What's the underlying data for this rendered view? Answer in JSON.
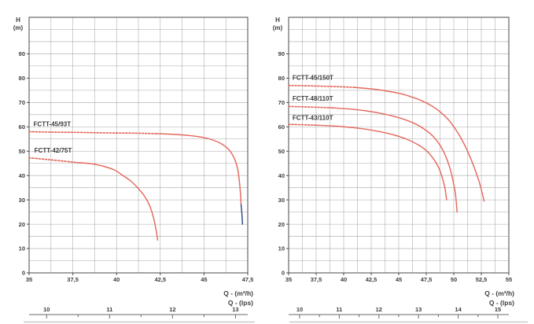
{
  "page": {
    "background": "#ffffff"
  },
  "colors": {
    "curve": "#e4695e",
    "curve_end_blue": "#2b4e86",
    "grid": "#a8a8a8",
    "frame": "#4a4a4a",
    "text": "#3d3d3d",
    "edge_bar": "#c9c9c9"
  },
  "chart_data": [
    {
      "type": "line",
      "name": "left-chart",
      "y_axis_title": "H",
      "y_axis_unit": "(m)",
      "x_axis_title": "Q - (m³/h)",
      "x_axis_secondary_title": "Q - (lps)",
      "xlim": [
        35,
        47.5
      ],
      "ylim": [
        0,
        105
      ],
      "x_minor_step": 1.25,
      "y_minor_step": 5,
      "x_ticks": [
        {
          "v": 35,
          "label": "35"
        },
        {
          "v": 37.5,
          "label": "37,5"
        },
        {
          "v": 40,
          "label": "40"
        },
        {
          "v": 42.5,
          "label": "42,5"
        },
        {
          "v": 45,
          "label": "45"
        },
        {
          "v": 47.5,
          "label": "47,5"
        }
      ],
      "y_ticks": [
        {
          "v": 0,
          "label": "0"
        },
        {
          "v": 10,
          "label": "10"
        },
        {
          "v": 20,
          "label": "20"
        },
        {
          "v": 30,
          "label": "30"
        },
        {
          "v": 40,
          "label": "40"
        },
        {
          "v": 50,
          "label": "50"
        },
        {
          "v": 60,
          "label": "60"
        },
        {
          "v": 70,
          "label": "70"
        },
        {
          "v": 80,
          "label": "80"
        },
        {
          "v": 90,
          "label": "90"
        }
      ],
      "lps_labels": [
        10,
        11,
        12,
        13
      ],
      "lps_factor": 3.6,
      "series": [
        {
          "name": "FCTT-45/93T",
          "color": "#e4695e",
          "label_pos": [
            35.25,
            60.3
          ],
          "segments": [
            {
              "style": "dashed",
              "points": [
                [
                  35,
                  58
                ],
                [
                  36.5,
                  57.8
                ],
                [
                  38,
                  57.7
                ],
                [
                  39.5,
                  57.5
                ],
                [
                  41,
                  57.4
                ],
                [
                  42.3,
                  57.2
                ]
              ]
            },
            {
              "style": "solid",
              "points": [
                [
                  42.3,
                  57.2
                ],
                [
                  43.3,
                  56.9
                ],
                [
                  44.2,
                  56.4
                ],
                [
                  44.9,
                  55.7
                ],
                [
                  45.5,
                  54.6
                ],
                [
                  46,
                  53
                ],
                [
                  46.4,
                  50.8
                ],
                [
                  46.7,
                  47.5
                ],
                [
                  46.9,
                  43.5
                ],
                [
                  47.0,
                  39
                ],
                [
                  47.08,
                  33
                ],
                [
                  47.12,
                  28
                ]
              ]
            },
            {
              "style": "solid",
              "color": "#2b4e86",
              "points": [
                [
                  47.12,
                  28
                ],
                [
                  47.17,
                  24
                ],
                [
                  47.2,
                  20
                ]
              ]
            }
          ]
        },
        {
          "name": "FCTT-42/75T",
          "color": "#e4695e",
          "label_pos": [
            35.3,
            49.4
          ],
          "segments": [
            {
              "style": "dashed",
              "points": [
                [
                  35,
                  47.3
                ],
                [
                  36,
                  46.6
                ],
                [
                  37,
                  45.9
                ],
                [
                  37.8,
                  45.3
                ]
              ]
            },
            {
              "style": "solid",
              "points": [
                [
                  37.8,
                  45.3
                ],
                [
                  38.6,
                  44.8
                ],
                [
                  39.3,
                  43.7
                ],
                [
                  39.9,
                  42.2
                ],
                [
                  40.3,
                  40.3
                ],
                [
                  40.8,
                  37.8
                ],
                [
                  41.2,
                  35
                ],
                [
                  41.6,
                  31.5
                ],
                [
                  41.9,
                  27.5
                ],
                [
                  42.1,
                  23
                ],
                [
                  42.25,
                  18
                ],
                [
                  42.35,
                  13.5
                ]
              ]
            }
          ]
        }
      ]
    },
    {
      "type": "line",
      "name": "right-chart",
      "y_axis_title": "H",
      "y_axis_unit": "(m)",
      "x_axis_title": "Q - (m³/h)",
      "x_axis_secondary_title": "Q - (lps)",
      "xlim": [
        35,
        55
      ],
      "ylim": [
        0,
        105
      ],
      "x_minor_step": 1.25,
      "y_minor_step": 5,
      "x_ticks": [
        {
          "v": 35,
          "label": "35"
        },
        {
          "v": 37.5,
          "label": "37,5"
        },
        {
          "v": 40,
          "label": "40"
        },
        {
          "v": 42.5,
          "label": "42,5"
        },
        {
          "v": 45,
          "label": "45"
        },
        {
          "v": 47.5,
          "label": "47,5"
        },
        {
          "v": 50,
          "label": "50"
        },
        {
          "v": 52.5,
          "label": "52,5"
        },
        {
          "v": 55,
          "label": "55"
        }
      ],
      "y_ticks": [
        {
          "v": 0,
          "label": "0"
        },
        {
          "v": 10,
          "label": "10"
        },
        {
          "v": 20,
          "label": "20"
        },
        {
          "v": 30,
          "label": "30"
        },
        {
          "v": 40,
          "label": "40"
        },
        {
          "v": 50,
          "label": "50"
        },
        {
          "v": 60,
          "label": "60"
        },
        {
          "v": 70,
          "label": "70"
        },
        {
          "v": 80,
          "label": "80"
        },
        {
          "v": 90,
          "label": "90"
        }
      ],
      "lps_labels": [
        10,
        11,
        12,
        13,
        14,
        15
      ],
      "lps_factor": 3.6,
      "series": [
        {
          "name": "FCTT-45/150T",
          "color": "#e4695e",
          "label_pos": [
            35.35,
            79.3
          ],
          "segments": [
            {
              "style": "dashed",
              "points": [
                [
                  35,
                  77
                ],
                [
                  36.5,
                  76.9
                ],
                [
                  38,
                  76.7
                ],
                [
                  39.5,
                  76.5
                ],
                [
                  41,
                  76.2
                ]
              ]
            },
            {
              "style": "solid",
              "points": [
                [
                  41,
                  76.2
                ],
                [
                  42.5,
                  75.6
                ],
                [
                  43.8,
                  74.8
                ],
                [
                  45,
                  73.8
                ],
                [
                  46.1,
                  72.4
                ],
                [
                  47.1,
                  70.7
                ],
                [
                  48,
                  68.6
                ],
                [
                  48.8,
                  66
                ],
                [
                  49.5,
                  63
                ],
                [
                  50.1,
                  59.4
                ],
                [
                  50.7,
                  55
                ],
                [
                  51.3,
                  49.5
                ],
                [
                  51.8,
                  44
                ],
                [
                  52.3,
                  37.5
                ],
                [
                  52.65,
                  31.5
                ],
                [
                  52.75,
                  29.5
                ]
              ]
            }
          ]
        },
        {
          "name": "FCTT-48/110T",
          "color": "#e4695e",
          "label_pos": [
            35.35,
            70.7
          ],
          "segments": [
            {
              "style": "dashed",
              "points": [
                [
                  35,
                  68.4
                ],
                [
                  36.4,
                  68.2
                ],
                [
                  37.8,
                  68
                ],
                [
                  39,
                  67.8
                ]
              ]
            },
            {
              "style": "solid",
              "points": [
                [
                  39,
                  67.8
                ],
                [
                  40.6,
                  67.3
                ],
                [
                  42,
                  66.6
                ],
                [
                  43.3,
                  65.6
                ],
                [
                  44.5,
                  64.4
                ],
                [
                  45.6,
                  62.9
                ],
                [
                  46.6,
                  61
                ],
                [
                  47.4,
                  58.8
                ],
                [
                  48.1,
                  56.2
                ],
                [
                  48.7,
                  52.8
                ],
                [
                  49.2,
                  48.6
                ],
                [
                  49.6,
                  43.8
                ],
                [
                  49.9,
                  38.5
                ],
                [
                  50.15,
                  32.5
                ],
                [
                  50.3,
                  25
                ]
              ]
            }
          ]
        },
        {
          "name": "FCTT-43/110T",
          "color": "#e4695e",
          "label_pos": [
            35.35,
            62.9
          ],
          "segments": [
            {
              "style": "dashed",
              "points": [
                [
                  35,
                  61
                ],
                [
                  36,
                  60.9
                ],
                [
                  37,
                  60.75
                ],
                [
                  37.6,
                  60.65
                ]
              ]
            },
            {
              "style": "solid",
              "points": [
                [
                  37.6,
                  60.65
                ],
                [
                  39.2,
                  60.3
                ],
                [
                  40.8,
                  59.7
                ],
                [
                  42.2,
                  58.9
                ],
                [
                  43.5,
                  57.8
                ],
                [
                  44.7,
                  56.5
                ],
                [
                  45.8,
                  54.8
                ],
                [
                  46.7,
                  52.8
                ],
                [
                  47.5,
                  50.3
                ],
                [
                  48.1,
                  47.2
                ],
                [
                  48.6,
                  43.5
                ],
                [
                  48.95,
                  39.2
                ],
                [
                  49.2,
                  34.8
                ],
                [
                  49.35,
                  30
                ]
              ]
            }
          ]
        }
      ]
    }
  ]
}
